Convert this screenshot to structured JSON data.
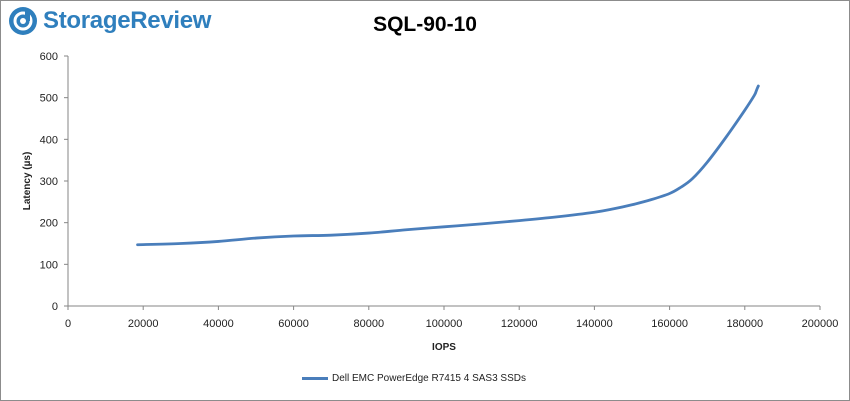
{
  "brand": {
    "name": "StorageReview",
    "color": "#2f7fbd"
  },
  "chart_data": {
    "type": "line",
    "title": "SQL-90-10",
    "xlabel": "IOPS",
    "ylabel": "Latency (µs)",
    "xlim": [
      0,
      200000
    ],
    "ylim": [
      0,
      600
    ],
    "x_ticks": [
      0,
      20000,
      40000,
      60000,
      80000,
      100000,
      120000,
      140000,
      160000,
      180000,
      200000
    ],
    "y_ticks": [
      0,
      100,
      200,
      300,
      400,
      500,
      600
    ],
    "grid": false,
    "legend_position": "bottom",
    "series": [
      {
        "name": "Dell EMC PowerEdge R7415 4 SAS3 SSDs",
        "color": "#4a7ebb",
        "x": [
          18500,
          30000,
          40000,
          50000,
          60000,
          70000,
          80000,
          90000,
          100000,
          110000,
          120000,
          130000,
          140000,
          145000,
          150000,
          155000,
          160000,
          163000,
          166000,
          170000,
          175000,
          180000,
          182500,
          183000,
          183300,
          183500,
          183600
        ],
        "y": [
          147,
          150,
          155,
          163,
          168,
          170,
          175,
          183,
          190,
          197,
          205,
          214,
          225,
          233,
          243,
          255,
          270,
          285,
          305,
          345,
          405,
          470,
          505,
          515,
          522,
          526,
          528
        ]
      }
    ]
  }
}
